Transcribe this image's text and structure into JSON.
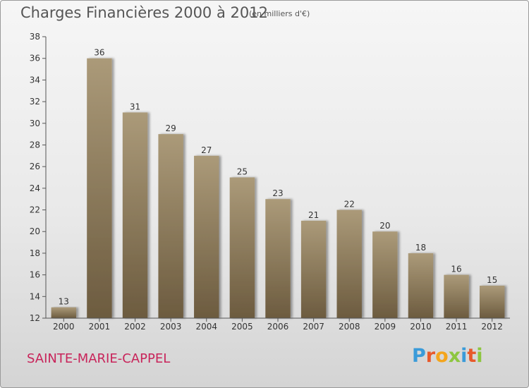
{
  "header": {
    "title": "Charges Financières 2000 à 2012",
    "subtitle": "(en milliers d'€)"
  },
  "footer": {
    "city": "SAINTE-MARIE-CAPPEL",
    "logo_letters": [
      "P",
      "r",
      "o",
      "x",
      "i",
      "t",
      "i"
    ],
    "logo_colors": [
      "#3a9bd9",
      "#e8592b",
      "#f4a51c",
      "#8dc63f",
      "#3a9bd9",
      "#e8592b",
      "#8dc63f"
    ]
  },
  "colors": {
    "bar": "#8f7d5c",
    "axis": "#555555",
    "text": "#333333"
  },
  "chart_data": {
    "type": "bar",
    "title": "Charges Financières 2000 à 2012",
    "subtitle": "(en milliers d'€)",
    "categories": [
      "2000",
      "2001",
      "2002",
      "2003",
      "2004",
      "2005",
      "2006",
      "2007",
      "2008",
      "2009",
      "2010",
      "2011",
      "2012"
    ],
    "values": [
      13,
      36,
      31,
      29,
      27,
      25,
      23,
      21,
      22,
      20,
      18,
      16,
      15
    ],
    "ylim": [
      12,
      38
    ],
    "yticks": [
      12,
      14,
      16,
      18,
      20,
      22,
      24,
      26,
      28,
      30,
      32,
      34,
      36,
      38
    ],
    "grid": false,
    "legend": "none",
    "data_labels": true
  }
}
